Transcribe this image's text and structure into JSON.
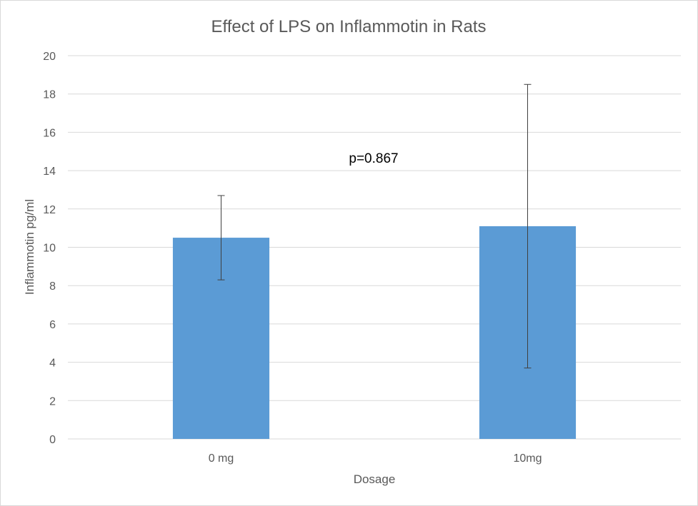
{
  "chart_data": {
    "type": "bar",
    "title": "Effect of LPS on Inflammotin in Rats",
    "xlabel": "Dosage",
    "ylabel": "Inflammotin pg/ml",
    "categories": [
      "0 mg",
      "10mg"
    ],
    "values": [
      10.5,
      11.1
    ],
    "error_bars": [
      {
        "low": 8.3,
        "high": 12.7
      },
      {
        "low": 3.7,
        "high": 18.5
      }
    ],
    "ylim": [
      0,
      20
    ],
    "yticks": [
      "0",
      "2",
      "4",
      "6",
      "8",
      "10",
      "12",
      "14",
      "16",
      "18",
      "20"
    ],
    "grid": true,
    "legend": "none",
    "annotation": "p=0.867",
    "bar_color": "#5b9bd5",
    "grid_color": "#d9d9d9",
    "error_bar_color": "#404040"
  }
}
